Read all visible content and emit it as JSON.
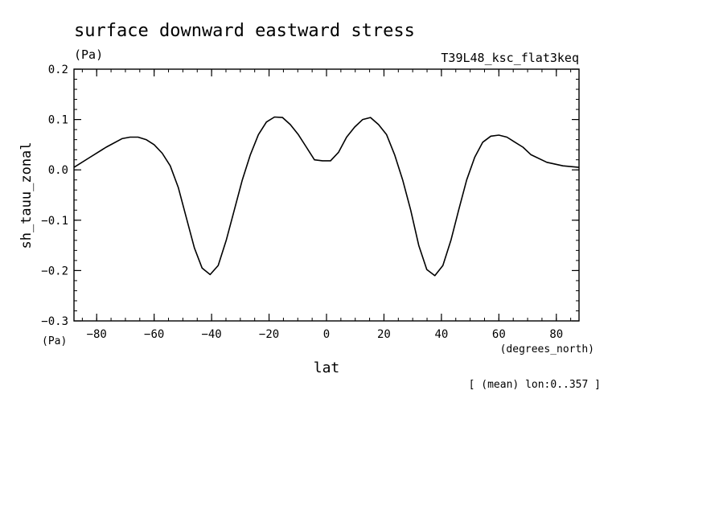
{
  "chart_data": {
    "type": "line",
    "title": "surface downward eastward stress",
    "title_units": "(Pa)",
    "experiment": "T39L48_ksc_flat3keq",
    "ylabel": "sh_tauu_zonal",
    "y_units": "(Pa)",
    "xlabel": "lat",
    "x_units": "(degrees_north)",
    "note": "[ (mean) lon:0..357 ]",
    "xlim": [
      -87.9,
      87.9
    ],
    "ylim": [
      -0.3,
      0.2
    ],
    "xticks": [
      -80,
      -60,
      -40,
      -20,
      0,
      20,
      40,
      60,
      80
    ],
    "xtick_labels": [
      "−80",
      "−60",
      "−40",
      "−20",
      "0",
      "20",
      "40",
      "60",
      "80"
    ],
    "yticks": [
      -0.3,
      -0.2,
      -0.1,
      0.0,
      0.1,
      0.2
    ],
    "ytick_labels": [
      "−0.3",
      "−0.2",
      "−0.1",
      "0.0",
      "0.1",
      "0.2"
    ],
    "x_minor_step": 5,
    "y_minor_step": 0.02,
    "grid": false,
    "series": [
      {
        "x": [
          -87.9,
          -82.3,
          -76.7,
          -71.2,
          -68.4,
          -65.6,
          -62.8,
          -60.0,
          -57.2,
          -54.4,
          -51.6,
          -48.8,
          -46.0,
          -43.3,
          -40.5,
          -37.7,
          -34.9,
          -32.1,
          -29.3,
          -26.5,
          -23.7,
          -20.9,
          -18.1,
          -15.3,
          -12.6,
          -9.8,
          -7.0,
          -4.2,
          -1.4,
          1.4,
          4.2,
          7.0,
          9.8,
          12.6,
          15.3,
          18.1,
          20.9,
          23.7,
          26.5,
          29.3,
          32.1,
          34.9,
          37.7,
          40.5,
          43.3,
          46.0,
          48.8,
          51.6,
          54.4,
          57.2,
          60.0,
          62.8,
          65.6,
          68.4,
          71.2,
          76.7,
          82.3,
          87.9
        ],
        "y": [
          0.005,
          0.025,
          0.045,
          0.062,
          0.065,
          0.065,
          0.06,
          0.05,
          0.033,
          0.008,
          -0.035,
          -0.095,
          -0.155,
          -0.195,
          -0.208,
          -0.19,
          -0.14,
          -0.08,
          -0.02,
          0.03,
          0.07,
          0.095,
          0.105,
          0.104,
          0.09,
          0.07,
          0.045,
          0.02,
          0.018,
          0.018,
          0.035,
          0.065,
          0.085,
          0.1,
          0.104,
          0.09,
          0.07,
          0.03,
          -0.02,
          -0.08,
          -0.15,
          -0.198,
          -0.21,
          -0.19,
          -0.14,
          -0.08,
          -0.02,
          0.025,
          0.055,
          0.067,
          0.069,
          0.065,
          0.055,
          0.045,
          0.03,
          0.015,
          0.008,
          0.005
        ]
      }
    ]
  }
}
